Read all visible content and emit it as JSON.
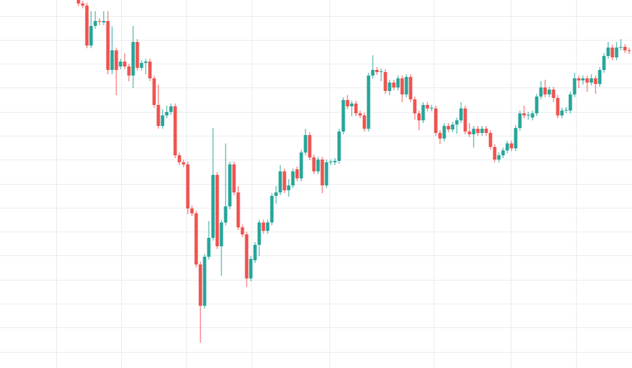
{
  "chart_data": {
    "type": "candlestick",
    "up_color": "#26a69a",
    "down_color": "#ef5350",
    "grid": true,
    "ylim": [
      0,
      526
    ],
    "yticks": [
      23,
      58,
      92,
      126,
      161,
      195,
      229,
      263,
      298,
      332,
      366,
      401,
      435,
      469,
      503
    ],
    "xlim": [
      -18.667,
      131.667
    ],
    "xticks": [
      -5.33,
      10.17,
      25.67,
      41.17,
      59.67,
      84.5,
      102.83,
      118.33
    ],
    "open": [
      526,
      521,
      518,
      461,
      489,
      496,
      494,
      496,
      426,
      454,
      431,
      438,
      431,
      418,
      466,
      429,
      436,
      438,
      414,
      376,
      346,
      361,
      366,
      374,
      304,
      294,
      291,
      228,
      221,
      148,
      89,
      159,
      186,
      276,
      174,
      208,
      231,
      291,
      251,
      201,
      191,
      128,
      154,
      176,
      208,
      196,
      208,
      246,
      251,
      281,
      254,
      261,
      284,
      271,
      308,
      333,
      301,
      281,
      298,
      261,
      294,
      294,
      296,
      338,
      383,
      374,
      378,
      364,
      361,
      342,
      418,
      426,
      423,
      423,
      396,
      408,
      401,
      414,
      391,
      416,
      384,
      364,
      354,
      376,
      371,
      371,
      336,
      328,
      346,
      341,
      348,
      354,
      371,
      338,
      334,
      342,
      336,
      342,
      336,
      316,
      298,
      304,
      311,
      321,
      314,
      343,
      364,
      361,
      358,
      364,
      388,
      401,
      391,
      398,
      386,
      361,
      368,
      368,
      391,
      414,
      411,
      414,
      408,
      414,
      406,
      426,
      446,
      458,
      444,
      458,
      459,
      454
    ],
    "high": [
      526,
      525,
      522,
      510,
      510,
      500,
      510,
      510,
      488,
      458,
      442,
      450,
      435,
      489,
      470,
      440,
      442,
      442,
      418,
      405,
      370,
      375,
      378,
      378,
      308,
      298,
      295,
      232,
      225,
      152,
      163,
      210,
      343,
      280,
      212,
      321,
      295,
      295,
      260,
      205,
      195,
      160,
      180,
      212,
      212,
      212,
      250,
      260,
      290,
      285,
      270,
      285,
      288,
      312,
      342,
      337,
      305,
      302,
      302,
      298,
      298,
      300,
      342,
      387,
      390,
      382,
      382,
      368,
      365,
      422,
      447,
      430,
      428,
      427,
      412,
      412,
      418,
      418,
      420,
      420,
      388,
      368,
      380,
      380,
      376,
      375,
      340,
      350,
      350,
      352,
      358,
      380,
      375,
      350,
      346,
      346,
      346,
      346,
      340,
      320,
      308,
      315,
      325,
      325,
      347,
      368,
      375,
      366,
      368,
      392,
      410,
      412,
      402,
      402,
      390,
      372,
      373,
      395,
      422,
      418,
      418,
      418,
      420,
      418,
      430,
      450,
      466,
      462,
      466,
      470,
      463,
      458
    ],
    "low": [
      517,
      514,
      457,
      457,
      485,
      490,
      490,
      420,
      420,
      390,
      427,
      427,
      410,
      400,
      425,
      425,
      420,
      410,
      372,
      342,
      342,
      357,
      362,
      300,
      290,
      287,
      220,
      217,
      144,
      36,
      85,
      155,
      182,
      170,
      132,
      204,
      227,
      247,
      197,
      187,
      116,
      124,
      150,
      160,
      192,
      192,
      204,
      235,
      247,
      250,
      245,
      257,
      267,
      267,
      304,
      297,
      277,
      277,
      250,
      257,
      290,
      290,
      292,
      334,
      370,
      360,
      360,
      357,
      338,
      338,
      414,
      419,
      410,
      392,
      390,
      397,
      397,
      380,
      387,
      380,
      355,
      340,
      350,
      367,
      367,
      332,
      320,
      324,
      337,
      337,
      335,
      350,
      334,
      330,
      315,
      332,
      332,
      332,
      312,
      294,
      294,
      300,
      307,
      310,
      310,
      339,
      357,
      355,
      354,
      360,
      384,
      387,
      387,
      380,
      357,
      357,
      364,
      364,
      387,
      400,
      405,
      395,
      404,
      392,
      402,
      422,
      442,
      440,
      440,
      454,
      450,
      449
    ],
    "close": [
      521,
      518,
      461,
      489,
      496,
      495,
      496,
      426,
      454,
      426,
      438,
      431,
      418,
      466,
      429,
      436,
      438,
      414,
      376,
      346,
      361,
      366,
      374,
      304,
      294,
      291,
      228,
      221,
      148,
      89,
      159,
      186,
      276,
      174,
      208,
      231,
      291,
      251,
      201,
      191,
      128,
      156,
      176,
      208,
      196,
      208,
      246,
      251,
      281,
      254,
      261,
      281,
      271,
      308,
      333,
      301,
      281,
      298,
      261,
      294,
      295,
      296,
      338,
      383,
      374,
      378,
      364,
      361,
      342,
      418,
      426,
      423,
      424,
      396,
      408,
      401,
      414,
      391,
      416,
      384,
      364,
      354,
      376,
      371,
      372,
      336,
      328,
      346,
      341,
      348,
      354,
      371,
      338,
      334,
      342,
      336,
      342,
      336,
      316,
      298,
      304,
      311,
      321,
      314,
      343,
      364,
      361,
      362,
      364,
      388,
      401,
      391,
      398,
      386,
      361,
      368,
      369,
      391,
      414,
      411,
      414,
      408,
      414,
      406,
      426,
      446,
      458,
      444,
      458,
      459,
      454,
      453
    ]
  }
}
